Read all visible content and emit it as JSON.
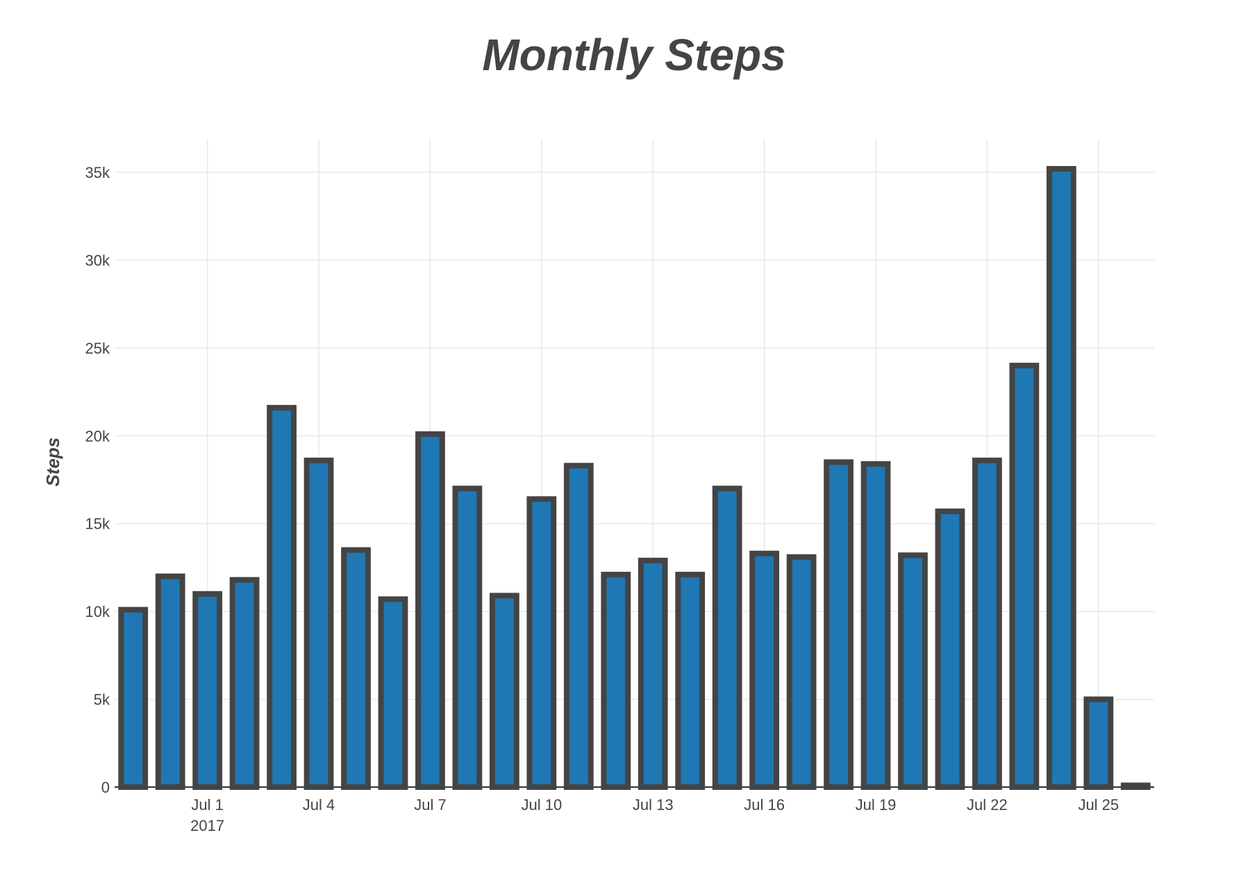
{
  "chart_data": {
    "type": "bar",
    "title": "Monthly Steps",
    "xlabel": "",
    "ylabel": "Steps",
    "year_label": "2017",
    "categories": [
      "2017-06-29",
      "2017-06-30",
      "2017-07-01",
      "2017-07-02",
      "2017-07-03",
      "2017-07-04",
      "2017-07-05",
      "2017-07-06",
      "2017-07-07",
      "2017-07-08",
      "2017-07-09",
      "2017-07-10",
      "2017-07-11",
      "2017-07-12",
      "2017-07-13",
      "2017-07-14",
      "2017-07-15",
      "2017-07-16",
      "2017-07-17",
      "2017-07-18",
      "2017-07-19",
      "2017-07-20",
      "2017-07-21",
      "2017-07-22",
      "2017-07-23",
      "2017-07-24",
      "2017-07-25",
      "2017-07-26"
    ],
    "values": [
      10100,
      12000,
      11000,
      11800,
      21600,
      18600,
      13500,
      10700,
      20100,
      17000,
      10900,
      16400,
      18300,
      12100,
      12900,
      12100,
      17000,
      13300,
      13100,
      18500,
      18400,
      13200,
      15700,
      18600,
      24000,
      35200,
      5000,
      100
    ],
    "x_ticks": [
      {
        "date": "2017-07-01",
        "label": "Jul 1"
      },
      {
        "date": "2017-07-04",
        "label": "Jul 4"
      },
      {
        "date": "2017-07-07",
        "label": "Jul 7"
      },
      {
        "date": "2017-07-10",
        "label": "Jul 10"
      },
      {
        "date": "2017-07-13",
        "label": "Jul 13"
      },
      {
        "date": "2017-07-16",
        "label": "Jul 16"
      },
      {
        "date": "2017-07-19",
        "label": "Jul 19"
      },
      {
        "date": "2017-07-22",
        "label": "Jul 22"
      },
      {
        "date": "2017-07-25",
        "label": "Jul 25"
      }
    ],
    "y_ticks": [
      {
        "value": 0,
        "label": "0"
      },
      {
        "value": 5000,
        "label": "5k"
      },
      {
        "value": 10000,
        "label": "10k"
      },
      {
        "value": 15000,
        "label": "15k"
      },
      {
        "value": 20000,
        "label": "20k"
      },
      {
        "value": 25000,
        "label": "25k"
      },
      {
        "value": 30000,
        "label": "30k"
      },
      {
        "value": 35000,
        "label": "35k"
      }
    ],
    "ylim": [
      0,
      36900
    ],
    "xlim": [
      "2017-06-28T12:00",
      "2017-07-26T12:00"
    ],
    "grid": true,
    "legend": "none",
    "colors": {
      "bar_fill": "#1f77b4",
      "bar_edge": "#444444",
      "grid": "#e8e8e8",
      "text": "#444444",
      "axis": "#444444"
    }
  }
}
